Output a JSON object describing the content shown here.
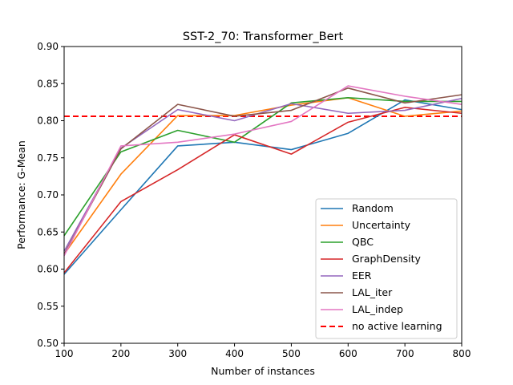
{
  "chart_data": {
    "type": "line",
    "title": "SST-2_70: Transformer_Bert",
    "xlabel": "Number of instances",
    "ylabel": "Performance: G-Mean",
    "xlim": [
      100,
      800
    ],
    "ylim": [
      0.5,
      0.9
    ],
    "xticks": [
      100,
      200,
      300,
      400,
      500,
      600,
      700,
      800
    ],
    "yticks": [
      0.5,
      0.55,
      0.6,
      0.65,
      0.7,
      0.75,
      0.8,
      0.85,
      0.9
    ],
    "grid": false,
    "legend_position": "lower-right",
    "x": [
      100,
      200,
      300,
      400,
      500,
      600,
      700,
      800
    ],
    "series": [
      {
        "name": "Random",
        "color": "#1f77b4",
        "values": [
          0.593,
          0.68,
          0.766,
          0.771,
          0.761,
          0.783,
          0.828,
          0.815
        ]
      },
      {
        "name": "Uncertainty",
        "color": "#ff7f0e",
        "values": [
          0.62,
          0.728,
          0.807,
          0.807,
          0.821,
          0.831,
          0.806,
          0.813
        ]
      },
      {
        "name": "QBC",
        "color": "#2ca02c",
        "values": [
          0.645,
          0.758,
          0.787,
          0.771,
          0.824,
          0.831,
          0.826,
          0.826
        ]
      },
      {
        "name": "GraphDensity",
        "color": "#d62728",
        "values": [
          0.595,
          0.691,
          0.734,
          0.781,
          0.755,
          0.798,
          0.818,
          0.81
        ]
      },
      {
        "name": "EER",
        "color": "#9467bd",
        "values": [
          0.624,
          0.763,
          0.815,
          0.8,
          0.823,
          0.81,
          0.814,
          0.83
        ]
      },
      {
        "name": "LAL_iter",
        "color": "#8c564b",
        "values": [
          0.62,
          0.762,
          0.822,
          0.806,
          0.814,
          0.844,
          0.824,
          0.835
        ]
      },
      {
        "name": "LAL_indep",
        "color": "#e377c2",
        "values": [
          0.618,
          0.766,
          0.771,
          0.782,
          0.799,
          0.847,
          0.833,
          0.822
        ]
      }
    ],
    "reference_line": {
      "name": "no active learning",
      "color": "#ff0000",
      "value": 0.806,
      "style": "dashed"
    }
  }
}
